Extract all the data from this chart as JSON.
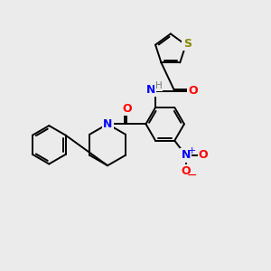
{
  "bg_color": "#ebebeb",
  "bond_color": "#000000",
  "bond_width": 1.4,
  "figsize": [
    3.0,
    3.0
  ],
  "dpi": 100,
  "xlim": [
    0,
    10
  ],
  "ylim": [
    0,
    10
  ]
}
